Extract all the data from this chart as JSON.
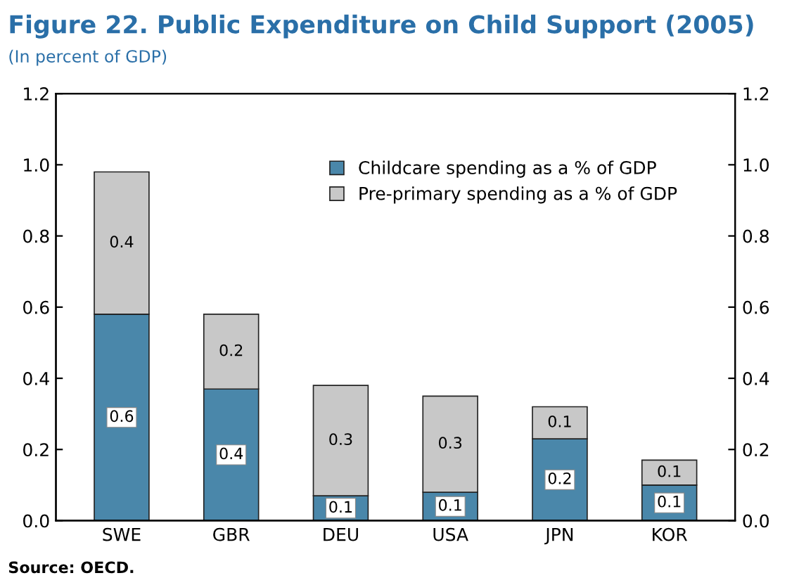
{
  "chart_data": {
    "type": "bar",
    "title": "Figure 22. Public Expenditure on Child Support (2005)",
    "subtitle": "(In percent of GDP)",
    "categories": [
      "SWE",
      "GBR",
      "DEU",
      "USA",
      "JPN",
      "KOR"
    ],
    "stacked": true,
    "series": [
      {
        "name": "Childcare spending as a % of GDP",
        "color": "#4a87aa",
        "values": [
          0.58,
          0.37,
          0.07,
          0.08,
          0.23,
          0.1
        ],
        "value_labels": [
          "0.6",
          "0.4",
          "0.1",
          "0.1",
          "0.2",
          "0.1"
        ]
      },
      {
        "name": "Pre-primary spending as a % of GDP",
        "color": "#c8c8c8",
        "values": [
          0.4,
          0.21,
          0.31,
          0.27,
          0.09,
          0.07
        ],
        "value_labels": [
          "0.4",
          "0.2",
          "0.3",
          "0.3",
          "0.1",
          "0.1"
        ]
      }
    ],
    "ylim": [
      0,
      1.2
    ],
    "yticks": [
      {
        "value": 0,
        "label": "0.0"
      },
      0.2,
      0.4,
      0.6,
      0.8,
      {
        "value": 1,
        "label": "1.0"
      },
      1.2
    ],
    "y2lim": [
      0,
      1.2
    ],
    "y2ticks": [
      {
        "value": 0,
        "label": "0.0"
      },
      0.2,
      0.4,
      0.6,
      0.8,
      {
        "value": 1,
        "label": "1.0"
      },
      1.2
    ],
    "legend": "top right",
    "grid": false,
    "annotations": [
      "Source: OECD."
    ]
  }
}
